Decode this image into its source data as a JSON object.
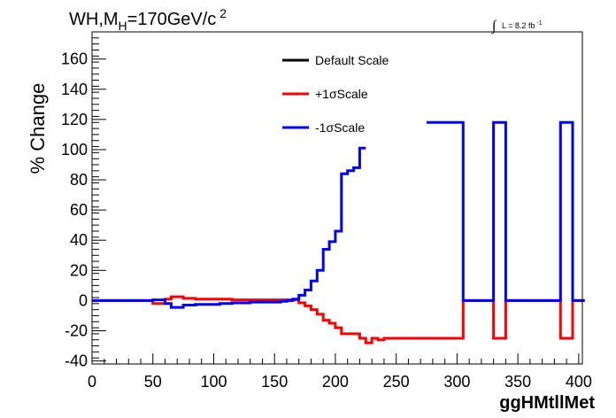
{
  "chart_data": {
    "type": "line",
    "step": true,
    "title_main": "WH,M",
    "title_sub": "H",
    "title_rest": "=170GeV/c",
    "title_sup": "2",
    "lumi_integral": "∫",
    "lumi_text": "L = 8.2 fb",
    "lumi_sup": "-1",
    "xlabel": "ggHMtllMet",
    "ylabel": "% Change",
    "xlim": [
      0,
      403
    ],
    "ylim": [
      -42,
      178
    ],
    "xticks": [
      0,
      50,
      100,
      150,
      200,
      250,
      300,
      350,
      400
    ],
    "yticks": [
      -40,
      -20,
      0,
      20,
      40,
      60,
      80,
      100,
      120,
      140,
      160
    ],
    "legend_position": "top-center",
    "colors": {
      "default": "#000000",
      "plus": "#ff0000",
      "minus": "#0000ff",
      "frame": "#000000"
    },
    "series": [
      {
        "name": "Default Scale",
        "color": "#000000",
        "bin_width": 5,
        "points": []
      },
      {
        "name": "+1σScale",
        "color": "#ff0000",
        "bin_width": 5,
        "points": [
          [
            0,
            0
          ],
          [
            5,
            0
          ],
          [
            10,
            0
          ],
          [
            15,
            0
          ],
          [
            20,
            0
          ],
          [
            25,
            0
          ],
          [
            30,
            0
          ],
          [
            35,
            0
          ],
          [
            40,
            0
          ],
          [
            45,
            0
          ],
          [
            50,
            -2
          ],
          [
            55,
            -2
          ],
          [
            60,
            1
          ],
          [
            65,
            2.5
          ],
          [
            70,
            2.5
          ],
          [
            75,
            1.5
          ],
          [
            80,
            1.5
          ],
          [
            85,
            1
          ],
          [
            90,
            1
          ],
          [
            95,
            1
          ],
          [
            100,
            1
          ],
          [
            105,
            1
          ],
          [
            110,
            1
          ],
          [
            115,
            0.5
          ],
          [
            120,
            0.5
          ],
          [
            125,
            0.5
          ],
          [
            130,
            0.5
          ],
          [
            135,
            0.5
          ],
          [
            140,
            0.5
          ],
          [
            145,
            0.5
          ],
          [
            150,
            0.5
          ],
          [
            155,
            0.5
          ],
          [
            160,
            0.5
          ],
          [
            165,
            0.5
          ],
          [
            170,
            -1.5
          ],
          [
            175,
            -3.5
          ],
          [
            180,
            -6
          ],
          [
            185,
            -9
          ],
          [
            190,
            -13
          ],
          [
            195,
            -15
          ],
          [
            200,
            -18
          ],
          [
            205,
            -22
          ],
          [
            210,
            -22
          ],
          [
            215,
            -22
          ],
          [
            220,
            -25
          ],
          [
            225,
            -28
          ],
          [
            230,
            -25
          ],
          [
            235,
            -26
          ],
          [
            240,
            -25
          ],
          [
            245,
            -25
          ],
          [
            250,
            -25
          ],
          [
            255,
            -25
          ],
          [
            260,
            -25
          ],
          [
            265,
            -25
          ],
          [
            270,
            -25
          ],
          [
            275,
            -25
          ],
          [
            280,
            -25
          ],
          [
            285,
            -25
          ],
          [
            290,
            -25
          ],
          [
            295,
            -25
          ],
          [
            300,
            -25
          ],
          [
            305,
            0
          ],
          [
            310,
            0
          ],
          [
            315,
            0
          ],
          [
            320,
            0
          ],
          [
            325,
            0
          ],
          [
            330,
            -25
          ],
          [
            335,
            -25
          ],
          [
            340,
            0
          ],
          [
            345,
            0
          ],
          [
            350,
            0
          ],
          [
            355,
            0
          ],
          [
            360,
            0
          ],
          [
            365,
            0
          ],
          [
            370,
            0
          ],
          [
            375,
            0
          ],
          [
            380,
            0
          ],
          [
            385,
            -25
          ],
          [
            390,
            -25
          ],
          [
            395,
            0
          ],
          [
            400,
            0
          ]
        ]
      },
      {
        "name": "-1σScale",
        "color": "#0000ff",
        "bin_width": 5,
        "points": [
          [
            0,
            0
          ],
          [
            5,
            0
          ],
          [
            10,
            0
          ],
          [
            15,
            0
          ],
          [
            20,
            0
          ],
          [
            25,
            0
          ],
          [
            30,
            0
          ],
          [
            35,
            0
          ],
          [
            40,
            0
          ],
          [
            45,
            0
          ],
          [
            50,
            0.5
          ],
          [
            55,
            0.5
          ],
          [
            60,
            -2
          ],
          [
            65,
            -4.5
          ],
          [
            70,
            -4.5
          ],
          [
            75,
            -3
          ],
          [
            80,
            -3
          ],
          [
            85,
            -2.5
          ],
          [
            90,
            -2.5
          ],
          [
            95,
            -2.5
          ],
          [
            100,
            -2.5
          ],
          [
            105,
            -2
          ],
          [
            110,
            -2
          ],
          [
            115,
            -1.5
          ],
          [
            120,
            -1.5
          ],
          [
            125,
            -1.5
          ],
          [
            130,
            -1
          ],
          [
            135,
            -1
          ],
          [
            140,
            -1
          ],
          [
            145,
            -1
          ],
          [
            150,
            -1
          ],
          [
            155,
            -0.5
          ],
          [
            160,
            0
          ],
          [
            165,
            1
          ],
          [
            170,
            3.5
          ],
          [
            175,
            7
          ],
          [
            180,
            13
          ],
          [
            185,
            20
          ],
          [
            190,
            34
          ],
          [
            195,
            39
          ],
          [
            200,
            46
          ],
          [
            205,
            84
          ],
          [
            210,
            86
          ],
          [
            215,
            88
          ],
          [
            220,
            101
          ],
          [
            null,
            null
          ],
          [
            275,
            118
          ],
          [
            280,
            118
          ],
          [
            285,
            118
          ],
          [
            290,
            118
          ],
          [
            295,
            118
          ],
          [
            300,
            118
          ],
          [
            305,
            0
          ],
          [
            310,
            0
          ],
          [
            315,
            0
          ],
          [
            320,
            0
          ],
          [
            325,
            0
          ],
          [
            330,
            118
          ],
          [
            335,
            118
          ],
          [
            340,
            0
          ],
          [
            345,
            0
          ],
          [
            350,
            0
          ],
          [
            355,
            0
          ],
          [
            360,
            0
          ],
          [
            365,
            0
          ],
          [
            370,
            0
          ],
          [
            375,
            0
          ],
          [
            380,
            0
          ],
          [
            385,
            118
          ],
          [
            390,
            118
          ],
          [
            395,
            0
          ],
          [
            400,
            0
          ]
        ]
      }
    ]
  }
}
